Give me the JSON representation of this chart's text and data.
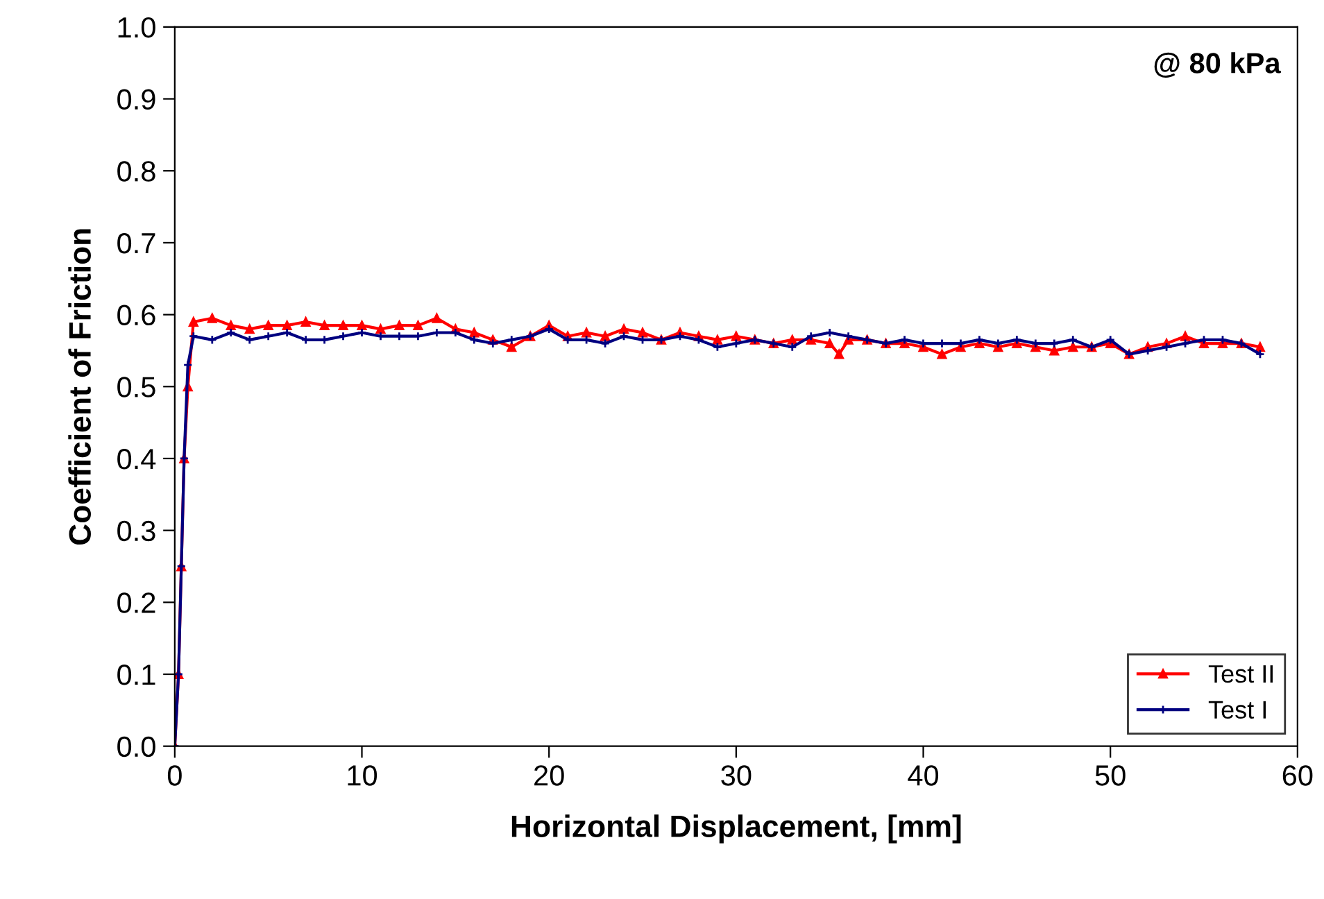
{
  "chart_data": {
    "type": "line",
    "title": "@ 80 kPa",
    "xlabel": "Horizontal Displacement, [mm]",
    "ylabel": "Coefficient of Friction",
    "xlim": [
      0,
      60
    ],
    "ylim": [
      0,
      1
    ],
    "xticks": [
      0,
      10,
      20,
      30,
      40,
      50,
      60
    ],
    "yticks": [
      {
        "value": 0,
        "label": "0.0"
      },
      0.1,
      0.2,
      0.3,
      0.4,
      0.5,
      0.6,
      0.7,
      0.8,
      0.9,
      {
        "value": 1,
        "label": "1.0"
      }
    ],
    "grid": false,
    "legend": "bottom right",
    "line_style": "solid",
    "series": [
      {
        "name": "Test II",
        "color": "#ff0000",
        "marker": "triangle",
        "x": [
          0,
          0.2,
          0.35,
          0.5,
          0.7,
          1,
          2,
          3,
          4,
          5,
          6,
          7,
          8,
          9,
          10,
          11,
          12,
          13,
          14,
          15,
          16,
          17,
          18,
          19,
          20,
          21,
          22,
          23,
          24,
          25,
          26,
          27,
          28,
          29,
          30,
          31,
          32,
          33,
          34,
          35,
          35.5,
          36,
          37,
          38,
          39,
          40,
          41,
          42,
          43,
          44,
          45,
          46,
          47,
          48,
          49,
          50,
          51,
          52,
          53,
          54,
          55,
          56,
          57,
          58
        ],
        "values": [
          0,
          0.1,
          0.25,
          0.4,
          0.5,
          0.59,
          0.595,
          0.585,
          0.58,
          0.585,
          0.585,
          0.59,
          0.585,
          0.585,
          0.585,
          0.58,
          0.585,
          0.585,
          0.595,
          0.58,
          0.575,
          0.565,
          0.555,
          0.57,
          0.585,
          0.57,
          0.575,
          0.57,
          0.58,
          0.575,
          0.565,
          0.575,
          0.57,
          0.565,
          0.57,
          0.565,
          0.56,
          0.565,
          0.565,
          0.56,
          0.545,
          0.565,
          0.565,
          0.56,
          0.56,
          0.555,
          0.545,
          0.555,
          0.56,
          0.555,
          0.56,
          0.555,
          0.55,
          0.555,
          0.555,
          0.56,
          0.545,
          0.555,
          0.56,
          0.57,
          0.56,
          0.56,
          0.56,
          0.555
        ]
      },
      {
        "name": "Test I",
        "color": "#000080",
        "marker": "cross",
        "x": [
          0,
          0.2,
          0.35,
          0.5,
          0.7,
          1,
          2,
          3,
          4,
          5,
          6,
          7,
          8,
          9,
          10,
          11,
          12,
          13,
          14,
          15,
          16,
          17,
          18,
          19,
          20,
          21,
          22,
          23,
          24,
          25,
          26,
          27,
          28,
          29,
          30,
          31,
          32,
          33,
          34,
          35,
          36,
          37,
          38,
          39,
          40,
          41,
          42,
          43,
          44,
          45,
          46,
          47,
          48,
          49,
          50,
          51,
          52,
          53,
          54,
          55,
          56,
          57,
          58
        ],
        "values": [
          0,
          0.1,
          0.25,
          0.4,
          0.53,
          0.57,
          0.565,
          0.575,
          0.565,
          0.57,
          0.575,
          0.565,
          0.565,
          0.57,
          0.575,
          0.57,
          0.57,
          0.57,
          0.575,
          0.575,
          0.565,
          0.56,
          0.565,
          0.57,
          0.58,
          0.565,
          0.565,
          0.56,
          0.57,
          0.565,
          0.565,
          0.57,
          0.565,
          0.555,
          0.56,
          0.565,
          0.56,
          0.555,
          0.57,
          0.575,
          0.57,
          0.565,
          0.56,
          0.565,
          0.56,
          0.56,
          0.56,
          0.565,
          0.56,
          0.565,
          0.56,
          0.56,
          0.565,
          0.555,
          0.565,
          0.545,
          0.55,
          0.555,
          0.56,
          0.565,
          0.565,
          0.56,
          0.545
        ]
      }
    ]
  }
}
